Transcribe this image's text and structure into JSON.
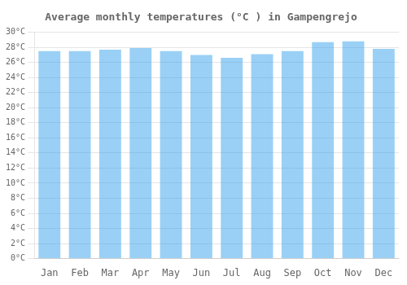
{
  "chart_data": {
    "type": "bar",
    "title": "Average monthly temperatures (°C ) in Gampengrejo",
    "categories": [
      "Jan",
      "Feb",
      "Mar",
      "Apr",
      "May",
      "Jun",
      "Jul",
      "Aug",
      "Sep",
      "Oct",
      "Nov",
      "Dec"
    ],
    "values": [
      27.5,
      27.5,
      27.7,
      27.9,
      27.5,
      27.0,
      26.6,
      27.1,
      27.5,
      28.7,
      28.8,
      27.8
    ],
    "ylim": [
      0,
      30
    ],
    "yticks": [
      {
        "value": 0,
        "label": "0°C"
      },
      {
        "value": 2,
        "label": "2°C"
      },
      {
        "value": 4,
        "label": "4°C"
      },
      {
        "value": 6,
        "label": "6°C"
      },
      {
        "value": 8,
        "label": "8°C"
      },
      {
        "value": 10,
        "label": "10°C"
      },
      {
        "value": 12,
        "label": "12°C"
      },
      {
        "value": 14,
        "label": "14°C"
      },
      {
        "value": 16,
        "label": "16°C"
      },
      {
        "value": 18,
        "label": "18°C"
      },
      {
        "value": 20,
        "label": "20°C"
      },
      {
        "value": 22,
        "label": "22°C"
      },
      {
        "value": 24,
        "label": "24°C"
      },
      {
        "value": 26,
        "label": "26°C"
      },
      {
        "value": 28,
        "label": "28°C"
      },
      {
        "value": 30,
        "label": "30°C"
      }
    ],
    "grid": true
  }
}
